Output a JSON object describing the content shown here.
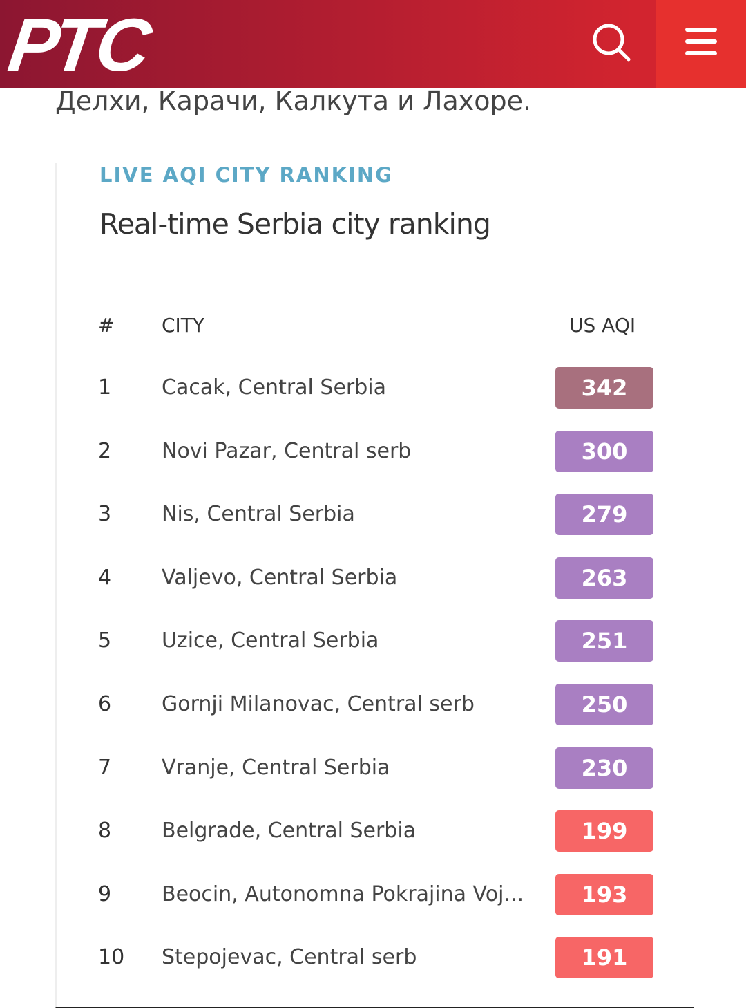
{
  "header": {
    "logo": "РТС"
  },
  "article": {
    "text": "Делхи, Карачи, Калкута и Лахоре."
  },
  "widget": {
    "label": "LIVE AQI CITY RANKING",
    "title": "Real-time Serbia city ranking",
    "table": {
      "columns": [
        "#",
        "CITY",
        "US AQI"
      ],
      "rows": [
        {
          "rank": 1,
          "city": "Cacak, Central Serbia",
          "aqi": 342,
          "color": "#a8707e"
        },
        {
          "rank": 2,
          "city": "Novi Pazar, Central serb",
          "aqi": 300,
          "color": "#a97fc2"
        },
        {
          "rank": 3,
          "city": "Nis, Central Serbia",
          "aqi": 279,
          "color": "#a97fc2"
        },
        {
          "rank": 4,
          "city": "Valjevo, Central Serbia",
          "aqi": 263,
          "color": "#a97fc2"
        },
        {
          "rank": 5,
          "city": "Uzice, Central Serbia",
          "aqi": 251,
          "color": "#a97fc2"
        },
        {
          "rank": 6,
          "city": "Gornji Milanovac, Central serb",
          "aqi": 250,
          "color": "#a97fc2"
        },
        {
          "rank": 7,
          "city": "Vranje, Central Serbia",
          "aqi": 230,
          "color": "#a97fc2"
        },
        {
          "rank": 8,
          "city": "Belgrade, Central Serbia",
          "aqi": 199,
          "color": "#f76666"
        },
        {
          "rank": 9,
          "city": "Beocin, Autonomna Pokrajina Voj...",
          "aqi": 193,
          "color": "#f76666"
        },
        {
          "rank": 10,
          "city": "Stepojevac, Central serb",
          "aqi": 191,
          "color": "#f76666"
        }
      ]
    }
  }
}
